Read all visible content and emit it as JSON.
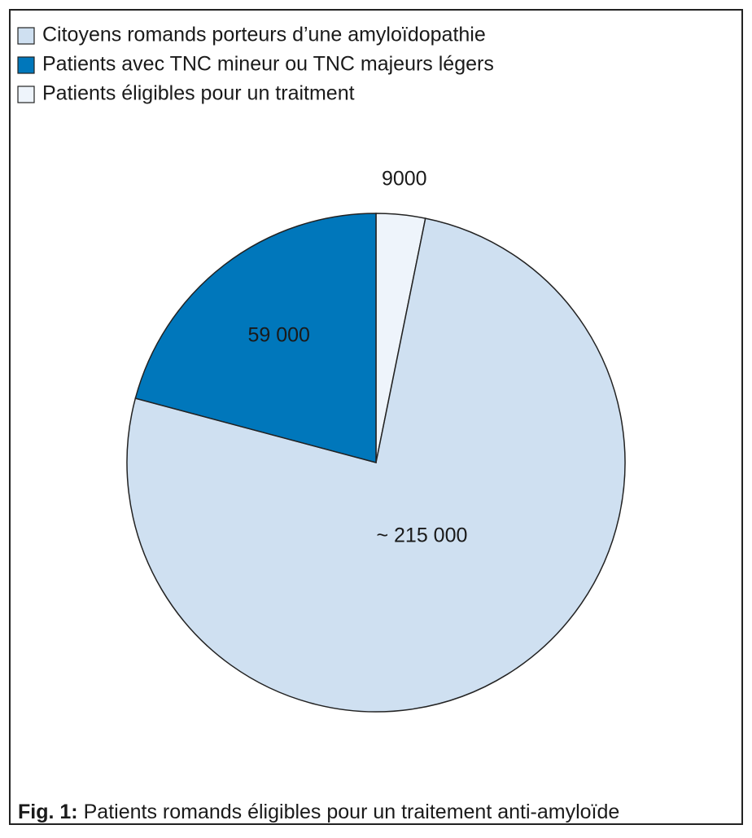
{
  "chart_data": {
    "type": "pie",
    "categories": [
      "Citoyens romands porteurs d’une amyloïdopathie",
      "Patients avec TNC mineur ou TNC majeurs légers",
      "Patients éligibles pour un traitment"
    ],
    "values": [
      215000,
      59000,
      9000
    ],
    "value_labels": [
      "~ 215 000",
      "59 000",
      "9000"
    ],
    "colors": [
      "#cfe0f1",
      "#0077bb",
      "#eef4fb"
    ],
    "caption_label": "Fig. 1:",
    "caption": "Patients romands éligibles pour un traitement anti-amyloïde"
  }
}
